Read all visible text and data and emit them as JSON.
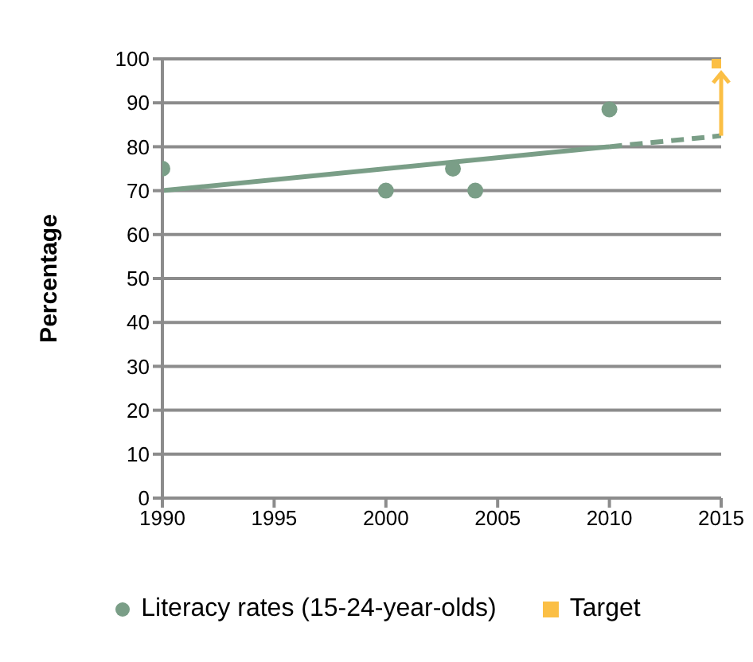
{
  "chart_data": {
    "type": "scatter",
    "ylabel": "Percentage",
    "xlim": [
      1990,
      2015
    ],
    "xticks": [
      1990,
      1995,
      2000,
      2005,
      2010,
      2015
    ],
    "ylim": [
      0,
      100
    ],
    "yticks": [
      0,
      10,
      20,
      30,
      40,
      50,
      60,
      70,
      80,
      90,
      100
    ],
    "grid": "y",
    "legend": "bottom",
    "series": [
      {
        "name": "Literacy rates (15-24-year-olds)",
        "marker": "circle",
        "color": "#7a9e87",
        "x": [
          1990,
          2000,
          2003,
          2004,
          2010
        ],
        "values": [
          75,
          70,
          75,
          70,
          88.5
        ]
      },
      {
        "type": "line",
        "line_style": "solid",
        "color": "#7a9e87",
        "x": [
          1990,
          2010
        ],
        "values": [
          70,
          80
        ]
      },
      {
        "type": "line",
        "line_style": "dashed",
        "color": "#7a9e87",
        "x": [
          2010,
          2015
        ],
        "values": [
          80,
          82.5
        ]
      },
      {
        "name": "Target",
        "marker": "square",
        "color": "#fbbf45",
        "x": [
          2015
        ],
        "values": [
          100
        ]
      }
    ]
  }
}
